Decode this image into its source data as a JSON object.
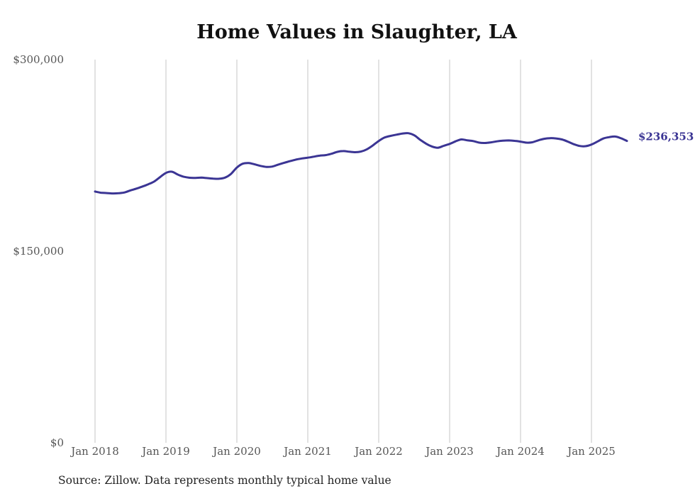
{
  "chart_data": {
    "type": "line",
    "title": "Home Values in Slaughter, LA",
    "xlabel": "",
    "ylabel": "",
    "ylim": [
      0,
      300000
    ],
    "y_ticks": [
      0,
      150000,
      300000
    ],
    "y_tick_labels": [
      "$0",
      "$150,000",
      "$300,000"
    ],
    "x_ticks": [
      "Jan 2018",
      "Jan 2019",
      "Jan 2020",
      "Jan 2021",
      "Jan 2022",
      "Jan 2023",
      "Jan 2024",
      "Jan 2025"
    ],
    "grid": "vertical",
    "line_color": "#3b3594",
    "end_label": "$236,353",
    "source": "Source: Zillow. Data represents monthly typical home value",
    "series": [
      {
        "name": "Typical home value",
        "start": "Jan 2018",
        "frequency": "monthly",
        "values": [
          196700,
          195800,
          195500,
          195200,
          195400,
          196000,
          197600,
          199000,
          200600,
          202400,
          204500,
          208000,
          211300,
          212200,
          210000,
          208300,
          207500,
          207400,
          207600,
          207200,
          206800,
          206700,
          207600,
          210500,
          215500,
          218500,
          219000,
          218000,
          216800,
          216000,
          216300,
          217800,
          219200,
          220500,
          221700,
          222600,
          223200,
          224000,
          224800,
          225200,
          226300,
          227800,
          228400,
          227900,
          227500,
          228000,
          229800,
          232800,
          236300,
          239000,
          240300,
          241200,
          242100,
          242400,
          240800,
          237300,
          234200,
          232000,
          231000,
          232500,
          234000,
          236000,
          237500,
          236800,
          236200,
          235000,
          234700,
          235200,
          236000,
          236500,
          236700,
          236400,
          235800,
          235000,
          235300,
          236800,
          238000,
          238500,
          238300,
          237500,
          235800,
          233800,
          232400,
          232200,
          233500,
          235800,
          238200,
          239300,
          239800,
          238400,
          236353
        ]
      }
    ]
  }
}
